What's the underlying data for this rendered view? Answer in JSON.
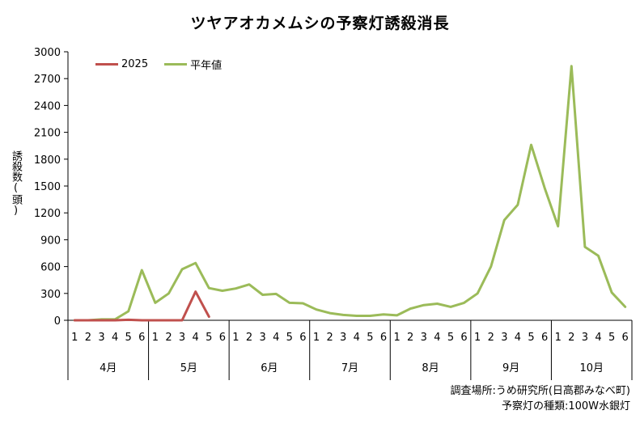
{
  "colors": {
    "series_2025": "#c0504d",
    "series_avg": "#9bbb59",
    "axis": "#000000"
  },
  "notes": {
    "location": "調査場所:うめ研究所(日高郡みなべ町)",
    "lamp": "予察灯の種類:100W水銀灯"
  },
  "chart_data": {
    "type": "line",
    "title": "ツヤアオカメムシの予察灯誘殺消長",
    "xlabel": "",
    "ylabel": "誘殺数(頭)",
    "ylim": [
      0,
      3000
    ],
    "yticks": [
      0,
      300,
      600,
      900,
      1200,
      1500,
      1800,
      2100,
      2400,
      2700,
      3000
    ],
    "grid": false,
    "legend_position": "top-left",
    "months": [
      "4月",
      "5月",
      "6月",
      "7月",
      "8月",
      "9月",
      "10月"
    ],
    "periods": [
      "1",
      "2",
      "3",
      "4",
      "5",
      "6"
    ],
    "series": [
      {
        "name": "2025",
        "values": [
          0,
          0,
          0,
          0,
          5,
          0,
          0,
          0,
          0,
          320,
          40,
          null,
          null,
          null,
          null,
          null,
          null,
          null,
          null,
          null,
          null,
          null,
          null,
          null,
          null,
          null,
          null,
          null,
          null,
          null,
          null,
          null,
          null,
          null,
          null,
          null,
          null,
          null,
          null,
          null,
          null,
          null
        ]
      },
      {
        "name": "平年値",
        "values": [
          0,
          0,
          10,
          10,
          100,
          560,
          195,
          300,
          570,
          640,
          360,
          330,
          355,
          400,
          285,
          295,
          195,
          190,
          120,
          80,
          60,
          50,
          50,
          65,
          55,
          130,
          170,
          185,
          150,
          195,
          300,
          600,
          1120,
          1290,
          1960,
          1480,
          1050,
          2840,
          820,
          720,
          310,
          150
        ]
      }
    ]
  }
}
